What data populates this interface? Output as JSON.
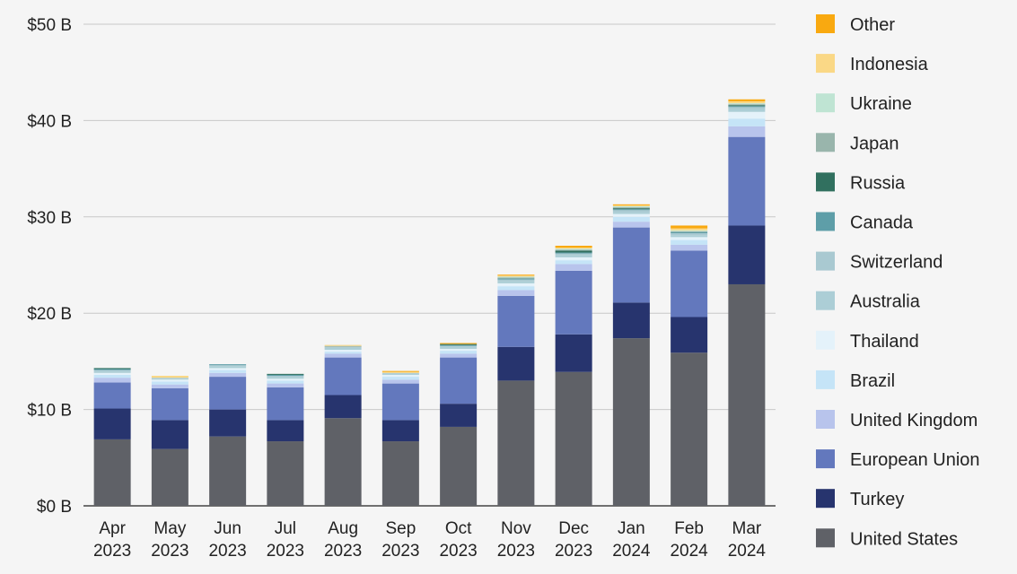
{
  "chart_data": {
    "type": "bar",
    "stacked": true,
    "title": "",
    "xlabel": "",
    "ylabel": "",
    "ylim": [
      0,
      50
    ],
    "yticks": [
      "$0 B",
      "$10 B",
      "$20 B",
      "$30 B",
      "$40 B",
      "$50 B"
    ],
    "ytick_values": [
      0,
      10,
      20,
      30,
      40,
      50
    ],
    "grid": true,
    "legend_position": "right",
    "categories": [
      [
        "Apr",
        "2023"
      ],
      [
        "May",
        "2023"
      ],
      [
        "Jun",
        "2023"
      ],
      [
        "Jul",
        "2023"
      ],
      [
        "Aug",
        "2023"
      ],
      [
        "Sep",
        "2023"
      ],
      [
        "Oct",
        "2023"
      ],
      [
        "Nov",
        "2023"
      ],
      [
        "Dec",
        "2023"
      ],
      [
        "Jan",
        "2024"
      ],
      [
        "Feb",
        "2024"
      ],
      [
        "Mar",
        "2024"
      ]
    ],
    "series": [
      {
        "name": "United States",
        "color": "#5f6167",
        "values": [
          6.9,
          5.9,
          7.2,
          6.7,
          9.1,
          6.7,
          8.2,
          13.0,
          13.9,
          17.4,
          15.9,
          23.0
        ]
      },
      {
        "name": "Turkey",
        "color": "#27346e",
        "values": [
          3.2,
          3.0,
          2.8,
          2.2,
          2.4,
          2.2,
          2.4,
          3.5,
          3.9,
          3.7,
          3.7,
          6.1
        ]
      },
      {
        "name": "European Union",
        "color": "#6378bd",
        "values": [
          2.7,
          3.3,
          3.4,
          3.4,
          3.9,
          3.8,
          4.8,
          5.3,
          6.6,
          7.8,
          6.9,
          9.2
        ]
      },
      {
        "name": "United Kingdom",
        "color": "#b8c4ec",
        "values": [
          0.5,
          0.4,
          0.4,
          0.4,
          0.4,
          0.4,
          0.4,
          0.6,
          0.7,
          0.6,
          0.6,
          1.1
        ]
      },
      {
        "name": "Brazil",
        "color": "#c5e4f7",
        "values": [
          0.3,
          0.3,
          0.3,
          0.3,
          0.2,
          0.3,
          0.3,
          0.4,
          0.4,
          0.5,
          0.5,
          0.8
        ]
      },
      {
        "name": "Thailand",
        "color": "#e4f2fa",
        "values": [
          0.2,
          0.2,
          0.2,
          0.2,
          0.2,
          0.2,
          0.2,
          0.3,
          0.3,
          0.3,
          0.3,
          0.7
        ]
      },
      {
        "name": "Australia",
        "color": "#acced6",
        "values": [
          0.2,
          0.1,
          0.2,
          0.2,
          0.2,
          0.1,
          0.2,
          0.2,
          0.2,
          0.2,
          0.2,
          0.3
        ]
      },
      {
        "name": "Switzerland",
        "color": "#a9c9d1",
        "values": [
          0.1,
          0.1,
          0.1,
          0.1,
          0.1,
          0.1,
          0.1,
          0.2,
          0.2,
          0.2,
          0.2,
          0.2
        ]
      },
      {
        "name": "Canada",
        "color": "#5e9ea8",
        "values": [
          0.1,
          0.0,
          0.1,
          0.1,
          0.0,
          0.0,
          0.1,
          0.1,
          0.1,
          0.1,
          0.1,
          0.1
        ]
      },
      {
        "name": "Russia",
        "color": "#31705f",
        "values": [
          0.1,
          0.0,
          0.0,
          0.1,
          0.0,
          0.0,
          0.1,
          0.0,
          0.2,
          0.1,
          0.0,
          0.1
        ]
      },
      {
        "name": "Japan",
        "color": "#99b5ac",
        "values": [
          0.0,
          0.0,
          0.0,
          0.0,
          0.1,
          0.0,
          0.0,
          0.1,
          0.1,
          0.1,
          0.1,
          0.1
        ]
      },
      {
        "name": "Ukraine",
        "color": "#bfe4d3",
        "values": [
          0.0,
          0.0,
          0.0,
          0.0,
          0.0,
          0.0,
          0.0,
          0.1,
          0.1,
          0.1,
          0.1,
          0.1
        ]
      },
      {
        "name": "Indonesia",
        "color": "#fad886",
        "values": [
          0.0,
          0.2,
          0.0,
          0.0,
          0.1,
          0.1,
          0.0,
          0.1,
          0.1,
          0.1,
          0.2,
          0.2
        ]
      },
      {
        "name": "Other",
        "color": "#f9a910",
        "values": [
          0.0,
          0.0,
          0.0,
          0.0,
          0.0,
          0.1,
          0.1,
          0.1,
          0.2,
          0.1,
          0.3,
          0.2
        ]
      }
    ]
  }
}
